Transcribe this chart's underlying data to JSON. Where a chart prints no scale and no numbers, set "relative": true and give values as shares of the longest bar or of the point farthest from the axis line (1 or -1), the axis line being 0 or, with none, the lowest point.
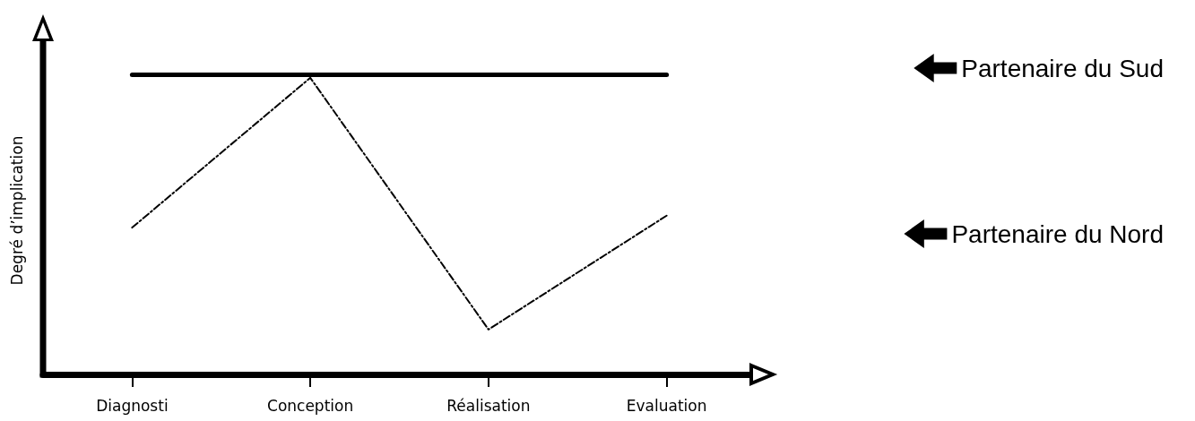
{
  "chart_data": {
    "type": "line",
    "ylabel": "Degré d’implication",
    "categories": [
      "Diagnosti",
      "Conception",
      "Réalisation",
      "Evaluation"
    ],
    "relative": true,
    "legend": "right",
    "marker": "none",
    "grid": false,
    "series": [
      {
        "name": "Partenaire du Sud",
        "color": "#000000",
        "values": [
          1,
          1,
          1,
          1
        ],
        "line_style": "solid"
      },
      {
        "name": "Partenaire du Nord",
        "color": "#000000",
        "values": [
          0.49,
          0.99,
          0.15,
          0.53
        ],
        "line_style": "dashed"
      }
    ]
  }
}
